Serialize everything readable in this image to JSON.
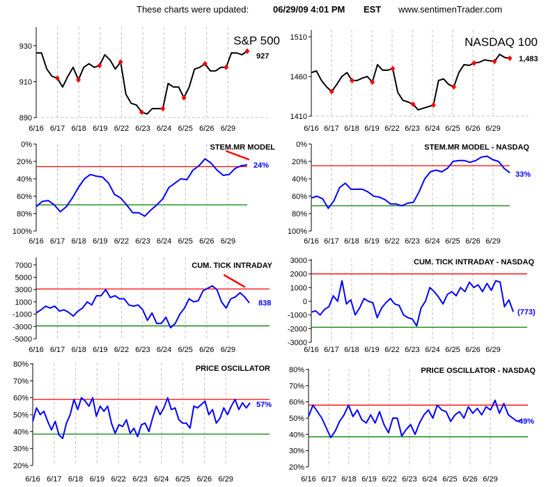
{
  "header": {
    "updated_label": "These charts were updated:",
    "updated_datetime": "06/29/09 4:01 PM",
    "timezone": "EST",
    "site": "www.sentimenTrader.com"
  },
  "colors": {
    "price": "#000000",
    "indicator": "#0000ff",
    "upper_line": "#ff0000",
    "lower_line": "#008000",
    "marker": "#ff0000",
    "trend": "#ff0000"
  },
  "chart_data": [
    {
      "type": "line",
      "title": "S&P 500",
      "last_label": "927",
      "ylim": [
        890,
        940
      ],
      "yticks": [
        "890",
        "910",
        "930"
      ],
      "ytick_values": [
        890,
        910,
        930
      ],
      "xticks": [
        "6/16",
        "6/17",
        "6/18",
        "6/19",
        "6/22",
        "6/23",
        "6/24",
        "6/25",
        "6/26",
        "6/29"
      ],
      "series_color": "#000000",
      "markers": true,
      "values": [
        926,
        926,
        917,
        913,
        912,
        907,
        913,
        918,
        911,
        918,
        920,
        918,
        919,
        925,
        922,
        917,
        921,
        903,
        898,
        897,
        893,
        892,
        895,
        895,
        895,
        909,
        907,
        907,
        901,
        907,
        917,
        918,
        920,
        916,
        916,
        918,
        918,
        926,
        926,
        925,
        927
      ]
    },
    {
      "type": "line",
      "title": "NASDAQ 100",
      "last_label": "1,483",
      "ylim": [
        1410,
        1520
      ],
      "yticks": [
        "1410",
        "1460",
        "1510"
      ],
      "ytick_values": [
        1410,
        1460,
        1510
      ],
      "xticks": [
        "6/16",
        "6/17",
        "6/18",
        "6/19",
        "6/22",
        "6/23",
        "6/24",
        "6/25",
        "6/26",
        "6/29"
      ],
      "series_color": "#000000",
      "markers": true,
      "values": [
        1465,
        1467,
        1455,
        1447,
        1441,
        1450,
        1460,
        1465,
        1455,
        1455,
        1458,
        1460,
        1453,
        1475,
        1468,
        1468,
        1470,
        1440,
        1430,
        1428,
        1425,
        1418,
        1420,
        1422,
        1424,
        1455,
        1457,
        1450,
        1447,
        1465,
        1475,
        1474,
        1477,
        1478,
        1481,
        1480,
        1479,
        1488,
        1484,
        1483
      ]
    },
    {
      "type": "line",
      "title": "STEM.MR MODEL",
      "last_label": "24%",
      "reversed": true,
      "ylim": [
        0,
        100
      ],
      "yticks": [
        "0%",
        "20%",
        "40%",
        "60%",
        "80%",
        "100%"
      ],
      "ytick_values": [
        0,
        20,
        40,
        60,
        80,
        100
      ],
      "xticks": [
        "6/16",
        "6/17",
        "6/18",
        "6/19",
        "6/22",
        "6/23",
        "6/24",
        "6/25",
        "6/26",
        "6/29"
      ],
      "upper_line": 26,
      "lower_line": 70,
      "trend": {
        "from": [
          8.9,
          8
        ],
        "to": [
          10,
          18
        ]
      },
      "values": [
        72,
        66,
        65,
        70,
        78,
        72,
        62,
        50,
        40,
        35,
        37,
        38,
        45,
        58,
        62,
        70,
        79,
        79,
        83,
        76,
        70,
        63,
        50,
        45,
        40,
        41,
        30,
        25,
        17,
        22,
        30,
        36,
        35,
        28,
        25,
        24
      ]
    },
    {
      "type": "line",
      "title": "STEM.MR MODEL - NASDAQ",
      "last_label": "33%",
      "reversed": true,
      "ylim": [
        0,
        100
      ],
      "yticks": [
        "0%",
        "20%",
        "40%",
        "60%",
        "80%",
        "100%"
      ],
      "ytick_values": [
        0,
        20,
        40,
        60,
        80,
        100
      ],
      "xticks": [
        "6/16",
        "6/17",
        "6/18",
        "6/19",
        "6/22",
        "6/23",
        "6/24",
        "6/25",
        "6/26",
        "6/29"
      ],
      "upper_line": 25,
      "lower_line": 71,
      "values": [
        62,
        60,
        63,
        74,
        65,
        50,
        45,
        52,
        52,
        52,
        55,
        60,
        61,
        64,
        69,
        69,
        71,
        68,
        67,
        55,
        40,
        32,
        30,
        32,
        28,
        20,
        19,
        19,
        21,
        19,
        15,
        14,
        18,
        20,
        28,
        33
      ]
    },
    {
      "type": "line",
      "title": "CUM. TICK INTRADAY",
      "last_label": "838",
      "ylim": [
        -5000,
        8000
      ],
      "yticks": [
        "-5000",
        "-3000",
        "-1000",
        "1000",
        "3000",
        "5000",
        "7000"
      ],
      "ytick_values": [
        -5000,
        -3000,
        -1000,
        1000,
        3000,
        5000,
        7000
      ],
      "xticks": [
        "6/16",
        "6/17",
        "6/18",
        "6/19",
        "6/22",
        "6/23",
        "6/24",
        "6/25",
        "6/26",
        "6/29"
      ],
      "upper_line": 3100,
      "lower_line": -2900,
      "trend": {
        "from": [
          8.8,
          5400
        ],
        "to": [
          9.8,
          3400
        ]
      },
      "values": [
        -800,
        -300,
        300,
        0,
        300,
        -500,
        -300,
        -700,
        -1300,
        -500,
        0,
        1000,
        500,
        2000,
        2000,
        3000,
        1700,
        2000,
        1500,
        1500,
        500,
        300,
        500,
        -300,
        -2000,
        -800,
        -2500,
        -2500,
        -1500,
        -3200,
        -2500,
        -1000,
        0,
        1500,
        1000,
        1200,
        2800,
        3200,
        3600,
        3000,
        1000,
        0,
        1500,
        1800,
        2500,
        1800,
        838
      ]
    },
    {
      "type": "line",
      "title": "CUM. TICK INTRADAY - NASDAQ",
      "last_label": "(773)",
      "ylim": [
        -3000,
        3000
      ],
      "yticks": [
        "-3000",
        "-2000",
        "-1000",
        "0",
        "1000",
        "2000",
        "3000"
      ],
      "ytick_values": [
        -3000,
        -2000,
        -1000,
        0,
        1000,
        2000,
        3000
      ],
      "xticks": [
        "6/16",
        "6/17",
        "6/18",
        "6/19",
        "6/22",
        "6/23",
        "6/24",
        "6/25",
        "6/26",
        "6/29"
      ],
      "upper_line": 2000,
      "lower_line": -1900,
      "values": [
        -800,
        -700,
        -1000,
        -600,
        -400,
        400,
        0,
        1500,
        -200,
        100,
        -1000,
        -500,
        200,
        0,
        -100,
        -1200,
        -500,
        -100,
        200,
        -200,
        -300,
        -1000,
        -1200,
        -1300,
        -1800,
        -500,
        0,
        1000,
        700,
        300,
        -200,
        500,
        700,
        400,
        1000,
        700,
        1400,
        1000,
        1200,
        700,
        1300,
        800,
        1500,
        1400,
        -400,
        100,
        -773
      ]
    },
    {
      "type": "line",
      "title": "PRICE OSCILLATOR",
      "last_label": "57%",
      "ylim": [
        20,
        80
      ],
      "yticks": [
        "20%",
        "30%",
        "40%",
        "50%",
        "60%",
        "70%",
        "80%"
      ],
      "ytick_values": [
        20,
        30,
        40,
        50,
        60,
        70,
        80
      ],
      "xticks": [
        "6/16",
        "6/17",
        "6/18",
        "6/19",
        "6/22",
        "6/23",
        "6/24",
        "6/25",
        "6/26",
        "6/29"
      ],
      "upper_line": 59,
      "lower_line": 38.5,
      "values": [
        46,
        54,
        50,
        52,
        46,
        41,
        46,
        38,
        36,
        45,
        50,
        59,
        53,
        60,
        58,
        55,
        60,
        49,
        55,
        52,
        55,
        45,
        39,
        44,
        43,
        47,
        39,
        42,
        37,
        44,
        45,
        40,
        48,
        55,
        50,
        54,
        60,
        53,
        54,
        47,
        45,
        45,
        42,
        55,
        54,
        56,
        58,
        50,
        53,
        45,
        48,
        54,
        50,
        55,
        59,
        53,
        57,
        54,
        57
      ]
    },
    {
      "type": "line",
      "title": "PRICE OSCILLATOR - NASDAQ",
      "last_label": "49%",
      "ylim": [
        20,
        80
      ],
      "yticks": [
        "20%",
        "30%",
        "40%",
        "50%",
        "60%",
        "70%",
        "80%"
      ],
      "ytick_values": [
        20,
        30,
        40,
        50,
        60,
        70,
        80
      ],
      "xticks": [
        "6/16",
        "6/17",
        "6/18",
        "6/19",
        "6/22",
        "6/23",
        "6/24",
        "6/25",
        "6/26",
        "6/29"
      ],
      "upper_line": 58,
      "lower_line": 38.5,
      "values": [
        51,
        58,
        54,
        50,
        44,
        38,
        42,
        48,
        52,
        58,
        51,
        55,
        49,
        47,
        52,
        47,
        54,
        46,
        41,
        50,
        50,
        39,
        43,
        46,
        40,
        47,
        52,
        55,
        50,
        58,
        55,
        54,
        48,
        52,
        54,
        50,
        57,
        53,
        56,
        52,
        57,
        55,
        61,
        53,
        59,
        52,
        50,
        48,
        49
      ]
    }
  ]
}
